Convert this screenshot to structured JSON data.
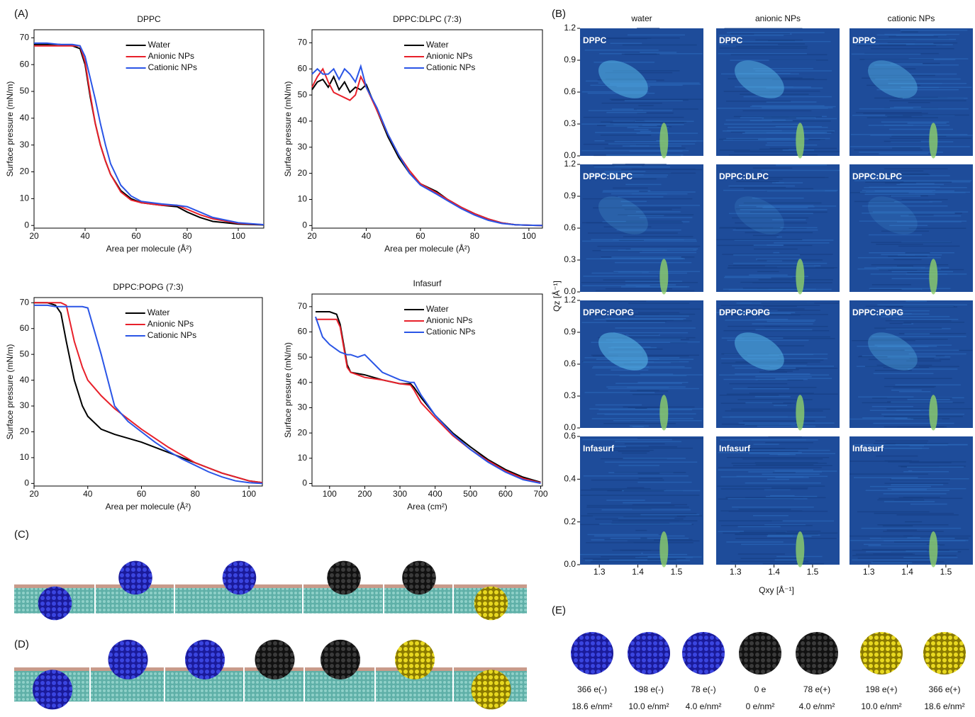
{
  "panel_labels": [
    "(A)",
    "(B)",
    "(C)",
    "(D)",
    "(E)"
  ],
  "chart_data": [
    {
      "type": "line",
      "title": "DPPC",
      "x_label": "Area per molecule (Å²)",
      "y_label": "Surface pressure (mN/m)",
      "xlim": [
        20,
        110
      ],
      "xticks": [
        20,
        40,
        60,
        80,
        100
      ],
      "ylim": [
        -1,
        73
      ],
      "yticks": [
        0,
        10,
        20,
        30,
        40,
        50,
        60,
        70
      ],
      "legend": "upper center",
      "x": [
        20,
        25,
        30,
        35,
        38,
        40,
        42,
        44,
        46,
        48,
        50,
        54,
        58,
        62,
        70,
        76,
        80,
        85,
        90,
        100,
        110
      ],
      "series": [
        {
          "name": "Water",
          "color": "#000000",
          "values": [
            67.5,
            67.5,
            67.5,
            67,
            66,
            60,
            48,
            38,
            30,
            24,
            19,
            13,
            10,
            8.5,
            7.5,
            7,
            5,
            3,
            1.5,
            0.5,
            0.2
          ]
        },
        {
          "name": "Anionic NPs",
          "color": "#e8202a",
          "values": [
            67,
            67,
            67,
            67,
            67,
            61,
            49,
            38,
            30,
            24,
            19,
            12.5,
            9.5,
            8.5,
            7.5,
            7.5,
            6,
            4,
            2.5,
            0.8,
            0.3
          ]
        },
        {
          "name": "Cationic NPs",
          "color": "#2a55e6",
          "values": [
            68,
            68,
            67.5,
            67.5,
            67,
            63,
            55,
            47,
            38,
            30,
            23,
            15,
            11,
            9,
            8,
            7.5,
            7,
            5,
            3,
            1,
            0.3
          ]
        }
      ]
    },
    {
      "type": "line",
      "title": "DPPC:DLPC (7:3)",
      "x_label": "Area per molecule (Å²)",
      "y_label": "Surface pressure (mN/m)",
      "xlim": [
        20,
        105
      ],
      "xticks": [
        20,
        40,
        60,
        80,
        100
      ],
      "ylim": [
        -1,
        75
      ],
      "yticks": [
        0,
        10,
        20,
        30,
        40,
        50,
        60,
        70
      ],
      "legend": "upper center",
      "x": [
        20,
        22,
        24,
        26,
        28,
        30,
        32,
        34,
        36,
        38,
        40,
        44,
        48,
        52,
        56,
        60,
        66,
        70,
        75,
        80,
        85,
        90,
        95,
        100,
        105
      ],
      "series": [
        {
          "name": "Water",
          "color": "#000000",
          "values": [
            52,
            55,
            56,
            53,
            57,
            52,
            55,
            51,
            53,
            52,
            54,
            44,
            34,
            26,
            20,
            16,
            13,
            10,
            7,
            4.5,
            2.5,
            1,
            0.3,
            0.1,
            0
          ]
        },
        {
          "name": "Anionic NPs",
          "color": "#e8202a",
          "values": [
            53,
            57,
            60,
            55,
            51,
            50,
            49,
            48,
            50,
            57,
            53,
            44,
            35,
            27,
            21,
            16,
            12.5,
            10,
            7,
            4.5,
            2.5,
            1,
            0.3,
            0.1,
            0
          ]
        },
        {
          "name": "Cationic NPs",
          "color": "#2a55e6",
          "values": [
            58,
            60,
            58,
            58,
            60,
            56,
            60,
            58,
            55,
            61,
            53,
            45,
            35,
            27,
            20,
            15.5,
            12,
            9.5,
            6.5,
            4,
            2,
            0.8,
            0.3,
            0.1,
            0
          ]
        }
      ]
    },
    {
      "type": "line",
      "title": "DPPC:POPG (7:3)",
      "x_label": "Area per molecule (Å²)",
      "y_label": "Surface pressure (mN/m)",
      "xlim": [
        20,
        105
      ],
      "xticks": [
        20,
        40,
        60,
        80,
        100
      ],
      "ylim": [
        -1,
        72
      ],
      "yticks": [
        0,
        10,
        20,
        30,
        40,
        50,
        60,
        70
      ],
      "legend": "upper center",
      "x": [
        20,
        25,
        28,
        30,
        32,
        35,
        38,
        40,
        45,
        50,
        55,
        60,
        65,
        70,
        75,
        80,
        85,
        90,
        95,
        100,
        105
      ],
      "series": [
        {
          "name": "Water",
          "color": "#000000",
          "values": [
            70,
            70,
            69,
            66,
            55,
            40,
            30,
            26,
            21,
            19,
            17.5,
            16,
            14,
            12,
            10,
            8,
            6,
            4,
            2.5,
            1,
            0.3
          ]
        },
        {
          "name": "Anionic NPs",
          "color": "#e8202a",
          "values": [
            70,
            70,
            70,
            70,
            69,
            55,
            45,
            40,
            34,
            29,
            25,
            21,
            17.5,
            14,
            11,
            8,
            6,
            4,
            2.5,
            1,
            0.3
          ]
        },
        {
          "name": "Cationic NPs",
          "color": "#2a55e6",
          "values": [
            69,
            69,
            68.5,
            68.5,
            68.5,
            68.5,
            68.5,
            68,
            50,
            30,
            24,
            20,
            16,
            12.5,
            9.5,
            7,
            4.5,
            2.5,
            1,
            0.3,
            0
          ]
        }
      ]
    },
    {
      "type": "line",
      "title": "Infasurf",
      "x_label": "Area (cm²)",
      "y_label": "Surface pressure (mN/m)",
      "xlim": [
        50,
        705
      ],
      "xticks": [
        100,
        200,
        300,
        400,
        500,
        600,
        700
      ],
      "ylim": [
        -1,
        75
      ],
      "yticks": [
        0,
        10,
        20,
        30,
        40,
        50,
        60,
        70
      ],
      "legend": "upper center",
      "x": [
        60,
        80,
        100,
        120,
        130,
        140,
        150,
        160,
        180,
        200,
        250,
        300,
        330,
        340,
        360,
        400,
        450,
        500,
        550,
        600,
        650,
        700
      ],
      "series": [
        {
          "name": "Water",
          "color": "#000000",
          "values": [
            68,
            68,
            68,
            67,
            63,
            55,
            47,
            44,
            43.5,
            43,
            41,
            39.5,
            39.5,
            38,
            34,
            27,
            20,
            14.5,
            9.5,
            5.5,
            2.5,
            0.5
          ]
        },
        {
          "name": "Anionic NPs",
          "color": "#e8202a",
          "values": [
            65,
            65,
            65,
            65,
            62,
            54,
            46,
            44,
            43,
            42,
            41,
            39.5,
            39,
            37,
            32,
            26,
            19,
            13.5,
            9,
            5,
            2,
            0.3
          ]
        },
        {
          "name": "Cationic NPs",
          "color": "#2a55e6",
          "values": [
            66,
            58,
            55,
            53,
            52,
            51.5,
            51,
            51,
            50,
            51,
            44,
            41,
            40,
            40,
            35,
            27,
            19.5,
            13.5,
            8.5,
            4.5,
            1.5,
            0.1
          ]
        }
      ]
    }
  ],
  "gixd": {
    "columns": [
      "water",
      "anionic NPs",
      "cationic NPs"
    ],
    "y_label": "Qz [Å⁻¹]",
    "x_label": "Qxy [Å⁻¹]",
    "xlim": [
      1.25,
      1.57
    ],
    "xticks": [
      1.3,
      1.4,
      1.5
    ],
    "rows": [
      {
        "label": "DPPC",
        "ylim": [
          0,
          1.2
        ],
        "yticks": [
          {
            "value": 0,
            "label": "0.0"
          },
          0.3,
          0.6,
          0.9,
          1.2
        ]
      },
      {
        "label": "DPPC:DLPC",
        "ylim": [
          0,
          1.2
        ],
        "yticks": [
          {
            "value": 0,
            "label": "0.0"
          },
          0.3,
          0.6,
          0.9,
          1.2
        ]
      },
      {
        "label": "DPPC:POPG",
        "ylim": [
          0,
          1.2
        ],
        "yticks": [
          {
            "value": 0,
            "label": "0.0"
          },
          0.3,
          0.6,
          0.9,
          1.2
        ]
      },
      {
        "label": "Infasurf",
        "ylim": [
          0,
          0.6
        ],
        "yticks": [
          {
            "value": 0,
            "label": "0.0"
          },
          0.2,
          0.4,
          0.6
        ]
      }
    ]
  },
  "nanoparticles": [
    {
      "charge": "366 e(-)",
      "density": "18.6 e/nm²"
    },
    {
      "charge": "198 e(-)",
      "density": "10.0 e/nm²"
    },
    {
      "charge": "78 e(-)",
      "density": "4.0 e/nm²"
    },
    {
      "charge": "0 e",
      "density": "0 e/nm²"
    },
    {
      "charge": "78 e(+)",
      "density": "4.0 e/nm²"
    },
    {
      "charge": "198 e(+)",
      "density": "10.0 e/nm²"
    },
    {
      "charge": "366 e(+)",
      "density": "18.6 e/nm²"
    }
  ]
}
